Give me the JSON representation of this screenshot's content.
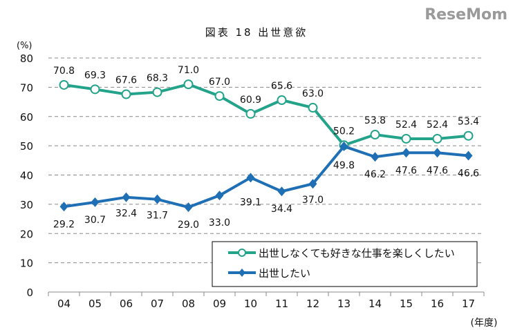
{
  "chart_data": {
    "type": "line",
    "title": "図表 18 出世意欲",
    "ylabel": "(%)",
    "xlabel": "(年度)",
    "ylim": [
      0,
      80
    ],
    "yticks": [
      0,
      10,
      20,
      30,
      40,
      50,
      60,
      70,
      80
    ],
    "grid": "horizontal dashed",
    "legend": "bottom-right",
    "categories": [
      "04",
      "05",
      "06",
      "07",
      "08",
      "09",
      "10",
      "11",
      "12",
      "13",
      "14",
      "15",
      "16",
      "17"
    ],
    "series": [
      {
        "name": "出世しなくても好きな仕事を楽しくしたい",
        "marker": "circle",
        "color": "#22a38a",
        "values": [
          70.8,
          69.3,
          67.6,
          68.3,
          71.0,
          67.0,
          60.9,
          65.6,
          63.0,
          50.2,
          53.8,
          52.4,
          52.4,
          53.4
        ]
      },
      {
        "name": "出世したい",
        "marker": "diamond",
        "color": "#1f6fb5",
        "values": [
          29.2,
          30.7,
          32.4,
          31.7,
          29.0,
          33.0,
          39.1,
          34.4,
          37.0,
          49.8,
          46.2,
          47.6,
          47.6,
          46.6
        ]
      }
    ]
  },
  "watermark": "ReseMom"
}
